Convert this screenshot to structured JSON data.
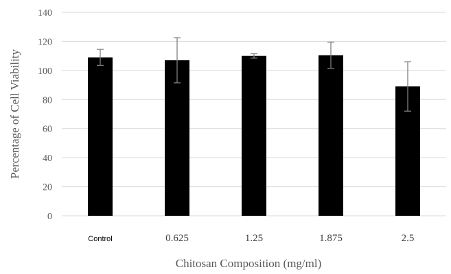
{
  "chart_data": {
    "type": "bar",
    "title": "",
    "xlabel": "Chitosan Composition (mg/ml)",
    "ylabel": "Percentage of Cell Viability",
    "categories": [
      "Control",
      "0.625",
      "1.25",
      "1.875",
      "2.5"
    ],
    "values": [
      109,
      107,
      110,
      110.5,
      89
    ],
    "error": [
      5.5,
      15.5,
      1.5,
      9,
      17
    ],
    "ylim": [
      0,
      140
    ],
    "yticks": [
      0,
      20,
      40,
      60,
      80,
      100,
      120,
      140
    ],
    "grid": true,
    "bar_color": "#000000",
    "grid_color": "#d9d9d9",
    "error_bar_color": "#7f7f7f"
  }
}
